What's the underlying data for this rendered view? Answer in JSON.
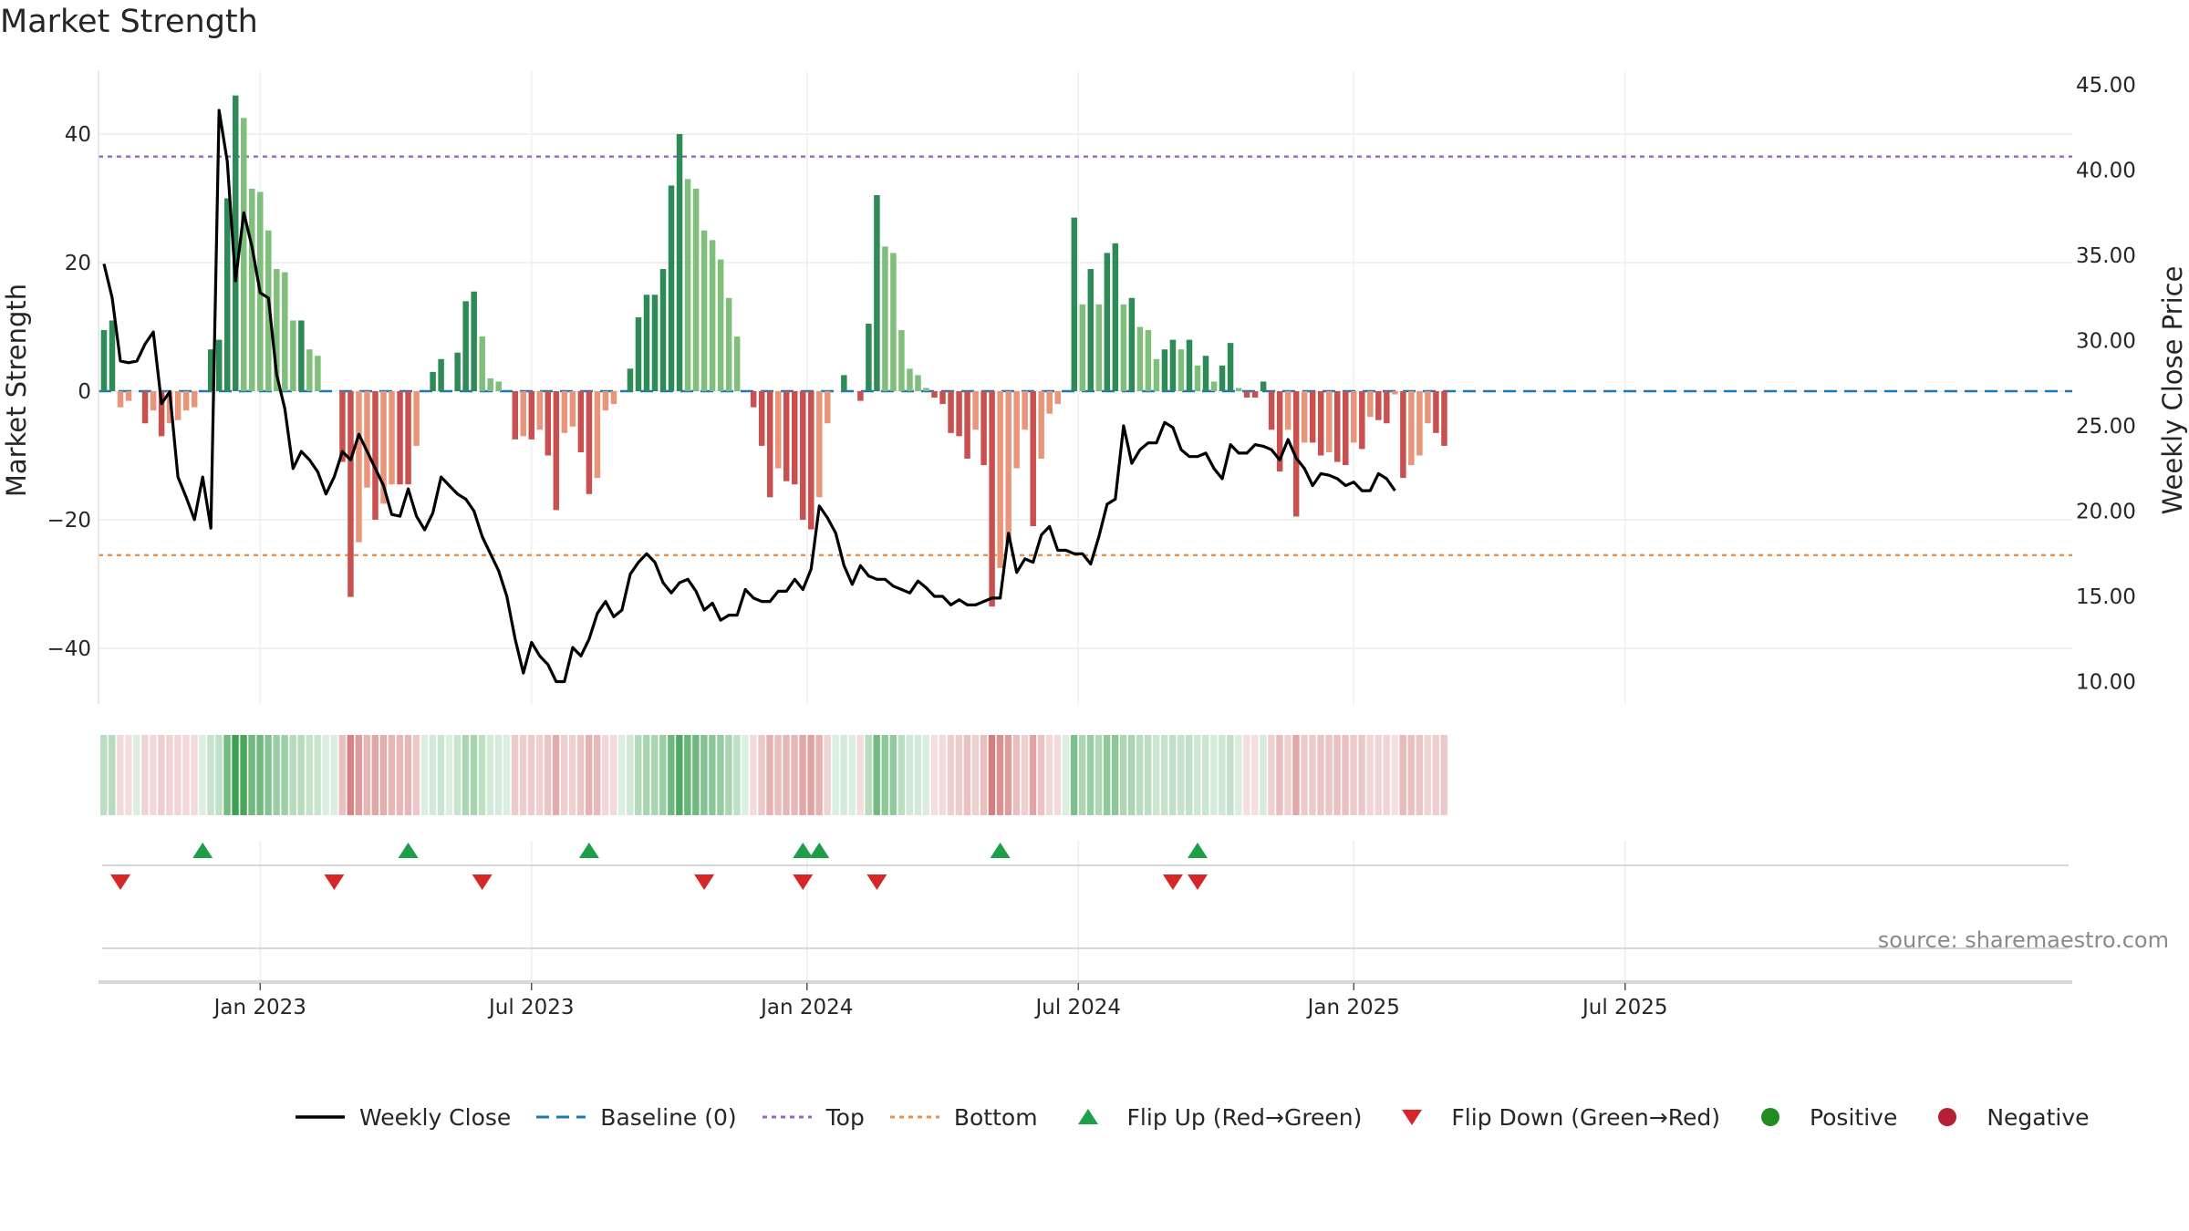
{
  "title": "Market Strength",
  "source_text": "source: sharemaestro.com",
  "legend": [
    {
      "key": "close",
      "label": "Weekly Close"
    },
    {
      "key": "baseline",
      "label": "Baseline (0)"
    },
    {
      "key": "top",
      "label": "Top"
    },
    {
      "key": "bottom",
      "label": "Bottom"
    },
    {
      "key": "flipup",
      "label": "Flip Up (Red→Green)"
    },
    {
      "key": "flipdown",
      "label": "Flip Down (Green→Red)"
    },
    {
      "key": "positive",
      "label": "Positive"
    },
    {
      "key": "negative",
      "label": "Negative"
    }
  ],
  "colors": {
    "pos_strong": "#2e8b57",
    "pos_light": "#7fbf7b",
    "neg_strong": "#c8514f",
    "neg_light": "#e8957a",
    "close": "#000000",
    "baseline": "#1f77b4",
    "top": "#9467bd",
    "bottom": "#e6924a",
    "flip_up": "#1f9e4a",
    "flip_down": "#d62728",
    "positive_dot": "#228b22",
    "negative_dot": "#b22234"
  },
  "chart_data": {
    "type": "bar",
    "x_ticks": [
      "Jan 2023",
      "Jul 2023",
      "Jan 2024",
      "Jul 2024",
      "Jan 2025",
      "Jul 2025"
    ],
    "x_tick_weeks": [
      19,
      52,
      85.5,
      118.5,
      152,
      185
    ],
    "ylabel_left": "Market Strength",
    "ylabel_right": "Weekly Close Price",
    "y_left_ticks": [
      40,
      20,
      0,
      -20,
      -40
    ],
    "y_left_tick_labels": [
      "40",
      "20",
      "0",
      "−20",
      "−40"
    ],
    "y_left_range": [
      -49,
      49
    ],
    "y_right_ticks": [
      45,
      40,
      35,
      30,
      25,
      20,
      15,
      10
    ],
    "y_right_tick_labels": [
      "45.00",
      "40.00",
      "35.00",
      "30.00",
      "25.00",
      "20.00",
      "15.00",
      "10.00"
    ],
    "y_right_range": [
      8.5,
      45.5
    ],
    "top_level": 36.5,
    "bottom_level": -25.5,
    "strength": [
      9.5,
      11,
      -2.5,
      -1.5,
      0,
      -5,
      -3,
      -7,
      -5,
      -4.5,
      -3,
      -2.5,
      0,
      6.5,
      8,
      30,
      46,
      42.5,
      31.5,
      31,
      25,
      19,
      18.5,
      11,
      11,
      6.5,
      5.5,
      0,
      0,
      -11,
      -32,
      -23.5,
      -15,
      -20,
      -17.5,
      -14.5,
      -14.5,
      -14.5,
      -8.5,
      0,
      3,
      5,
      0,
      6,
      14,
      15.5,
      8.5,
      2,
      1.5,
      0,
      -7.5,
      -7,
      -7.5,
      -6,
      -10,
      -18.5,
      -6.5,
      -5.5,
      -9.5,
      -16,
      -13.5,
      -3,
      -2,
      0,
      3.5,
      11.5,
      15,
      15,
      19,
      32,
      40,
      33,
      31.5,
      25,
      23.5,
      20.5,
      14.5,
      8.5,
      0,
      -2.5,
      -8.5,
      -16.5,
      -12,
      -14,
      -14.5,
      -20,
      -21.5,
      -16.5,
      -5,
      0,
      2.5,
      0,
      -1.5,
      10.5,
      30.5,
      22.5,
      21.5,
      9.5,
      3.5,
      2.5,
      0.5,
      -1,
      -2,
      -6.5,
      -7,
      -10.5,
      -6,
      -11.5,
      -33.5,
      -27.5,
      -23.5,
      -12,
      -6,
      -21,
      -10.5,
      -3.5,
      -2,
      0,
      27,
      13.5,
      19,
      13.5,
      21.5,
      23,
      13.5,
      14.5,
      10,
      9.5,
      5,
      6.5,
      8,
      6.5,
      8,
      4,
      5.5,
      1.5,
      4,
      7.5,
      0.5,
      -1,
      -1,
      1.5,
      -6,
      -12.5,
      -6,
      -19.5,
      -8,
      -8,
      -10,
      -9.5,
      -11,
      -11.5,
      -8,
      -9,
      -4,
      -4.5,
      -5,
      -0.5,
      -13.5,
      -11.5,
      -10,
      -5,
      -6.5,
      -8.5
    ],
    "weekly_close": [
      34.5,
      32.5,
      28.8,
      28.7,
      28.8,
      29.8,
      30.5,
      26.3,
      27,
      22,
      20.8,
      19.5,
      22,
      19,
      43.5,
      40.5,
      33.5,
      37.5,
      35.5,
      32.8,
      32.5,
      28,
      26,
      22.5,
      23.5,
      23,
      22.3,
      21,
      22,
      23.5,
      23,
      24.5,
      23.5,
      22.5,
      21.5,
      19.8,
      19.7,
      21.3,
      19.7,
      18.9,
      19.9,
      22,
      21.5,
      21,
      20.7,
      20,
      18.5,
      17.5,
      16.5,
      15,
      12.5,
      10.5,
      12.3,
      11.5,
      11,
      10,
      10,
      12,
      11.5,
      12.5,
      14,
      14.7,
      13.8,
      14.2,
      16.3,
      17,
      17.5,
      17,
      15.8,
      15.2,
      15.8,
      16,
      15.3,
      14.2,
      14.6,
      13.6,
      13.9,
      13.9,
      15.4,
      14.9,
      14.7,
      14.7,
      15.3,
      15.3,
      16,
      15.4,
      16.6,
      20.3,
      19.6,
      18.7,
      16.8,
      15.7,
      16.8,
      16.2,
      16,
      16,
      15.6,
      15.4,
      15.2,
      15.9,
      15.5,
      15,
      15,
      14.5,
      14.8,
      14.5,
      14.5,
      14.7,
      14.9,
      14.9,
      18.7,
      16.4,
      17.2,
      17,
      18.6,
      19.1,
      17.7,
      17.7,
      17.5,
      17.5,
      16.9,
      18.5,
      20.4,
      20.7,
      25,
      22.8,
      23.6,
      24,
      24,
      25.2,
      24.9,
      23.6,
      23.2,
      23.2,
      23.4,
      22.5,
      21.9,
      23.9,
      23.4,
      23.4,
      23.9,
      23.8,
      23.6,
      23,
      24.2,
      23.1,
      22.5,
      21.5,
      22.2,
      22.1,
      21.9,
      21.5,
      21.7,
      21.2,
      21.2,
      22.2,
      21.9,
      21.2
    ],
    "flip_up_weeks": [
      12,
      37,
      59,
      85,
      87,
      109,
      133
    ],
    "flip_down_weeks": [
      2,
      28,
      46,
      73,
      85,
      94,
      130,
      133
    ]
  }
}
